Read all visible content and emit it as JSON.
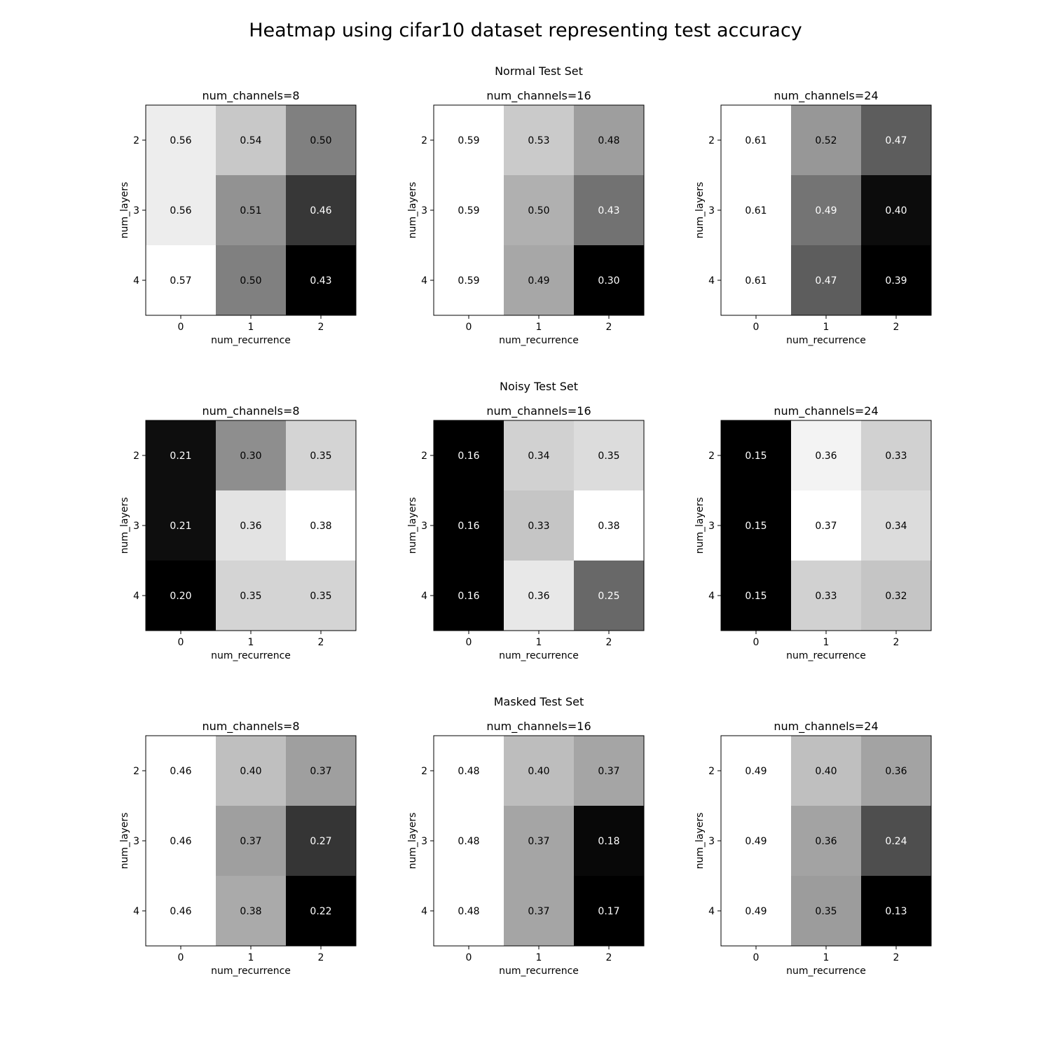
{
  "title": "Heatmap using cifar10 dataset representing test accuracy",
  "chart_data": {
    "type": "heatmap",
    "colormap": "grayscale",
    "x_ticks": [
      "0",
      "1",
      "2"
    ],
    "y_ticks": [
      "2",
      "3",
      "4"
    ],
    "xlabel": "num_recurrence",
    "ylabel": "num_layers",
    "rows": [
      {
        "title": "Normal Test Set",
        "panels": [
          {
            "title": "num_channels=8",
            "values": [
              [
                0.56,
                0.54,
                0.5
              ],
              [
                0.56,
                0.51,
                0.46
              ],
              [
                0.57,
                0.5,
                0.43
              ]
            ]
          },
          {
            "title": "num_channels=16",
            "values": [
              [
                0.59,
                0.53,
                0.48
              ],
              [
                0.59,
                0.5,
                0.43
              ],
              [
                0.59,
                0.49,
                0.3
              ]
            ]
          },
          {
            "title": "num_channels=24",
            "values": [
              [
                0.61,
                0.52,
                0.47
              ],
              [
                0.61,
                0.49,
                0.4
              ],
              [
                0.61,
                0.47,
                0.39
              ]
            ]
          }
        ]
      },
      {
        "title": "Noisy Test Set",
        "panels": [
          {
            "title": "num_channels=8",
            "values": [
              [
                0.21,
                0.3,
                0.35
              ],
              [
                0.21,
                0.36,
                0.38
              ],
              [
                0.2,
                0.35,
                0.35
              ]
            ]
          },
          {
            "title": "num_channels=16",
            "values": [
              [
                0.16,
                0.34,
                0.35
              ],
              [
                0.16,
                0.33,
                0.38
              ],
              [
                0.16,
                0.36,
                0.25
              ]
            ]
          },
          {
            "title": "num_channels=24",
            "values": [
              [
                0.15,
                0.36,
                0.33
              ],
              [
                0.15,
                0.37,
                0.34
              ],
              [
                0.15,
                0.33,
                0.32
              ]
            ]
          }
        ]
      },
      {
        "title": "Masked Test Set",
        "panels": [
          {
            "title": "num_channels=8",
            "values": [
              [
                0.46,
                0.4,
                0.37
              ],
              [
                0.46,
                0.37,
                0.27
              ],
              [
                0.46,
                0.38,
                0.22
              ]
            ]
          },
          {
            "title": "num_channels=16",
            "values": [
              [
                0.48,
                0.4,
                0.37
              ],
              [
                0.48,
                0.37,
                0.18
              ],
              [
                0.48,
                0.37,
                0.17
              ]
            ]
          },
          {
            "title": "num_channels=24",
            "values": [
              [
                0.49,
                0.4,
                0.36
              ],
              [
                0.49,
                0.36,
                0.24
              ],
              [
                0.49,
                0.35,
                0.13
              ]
            ]
          }
        ]
      }
    ]
  }
}
